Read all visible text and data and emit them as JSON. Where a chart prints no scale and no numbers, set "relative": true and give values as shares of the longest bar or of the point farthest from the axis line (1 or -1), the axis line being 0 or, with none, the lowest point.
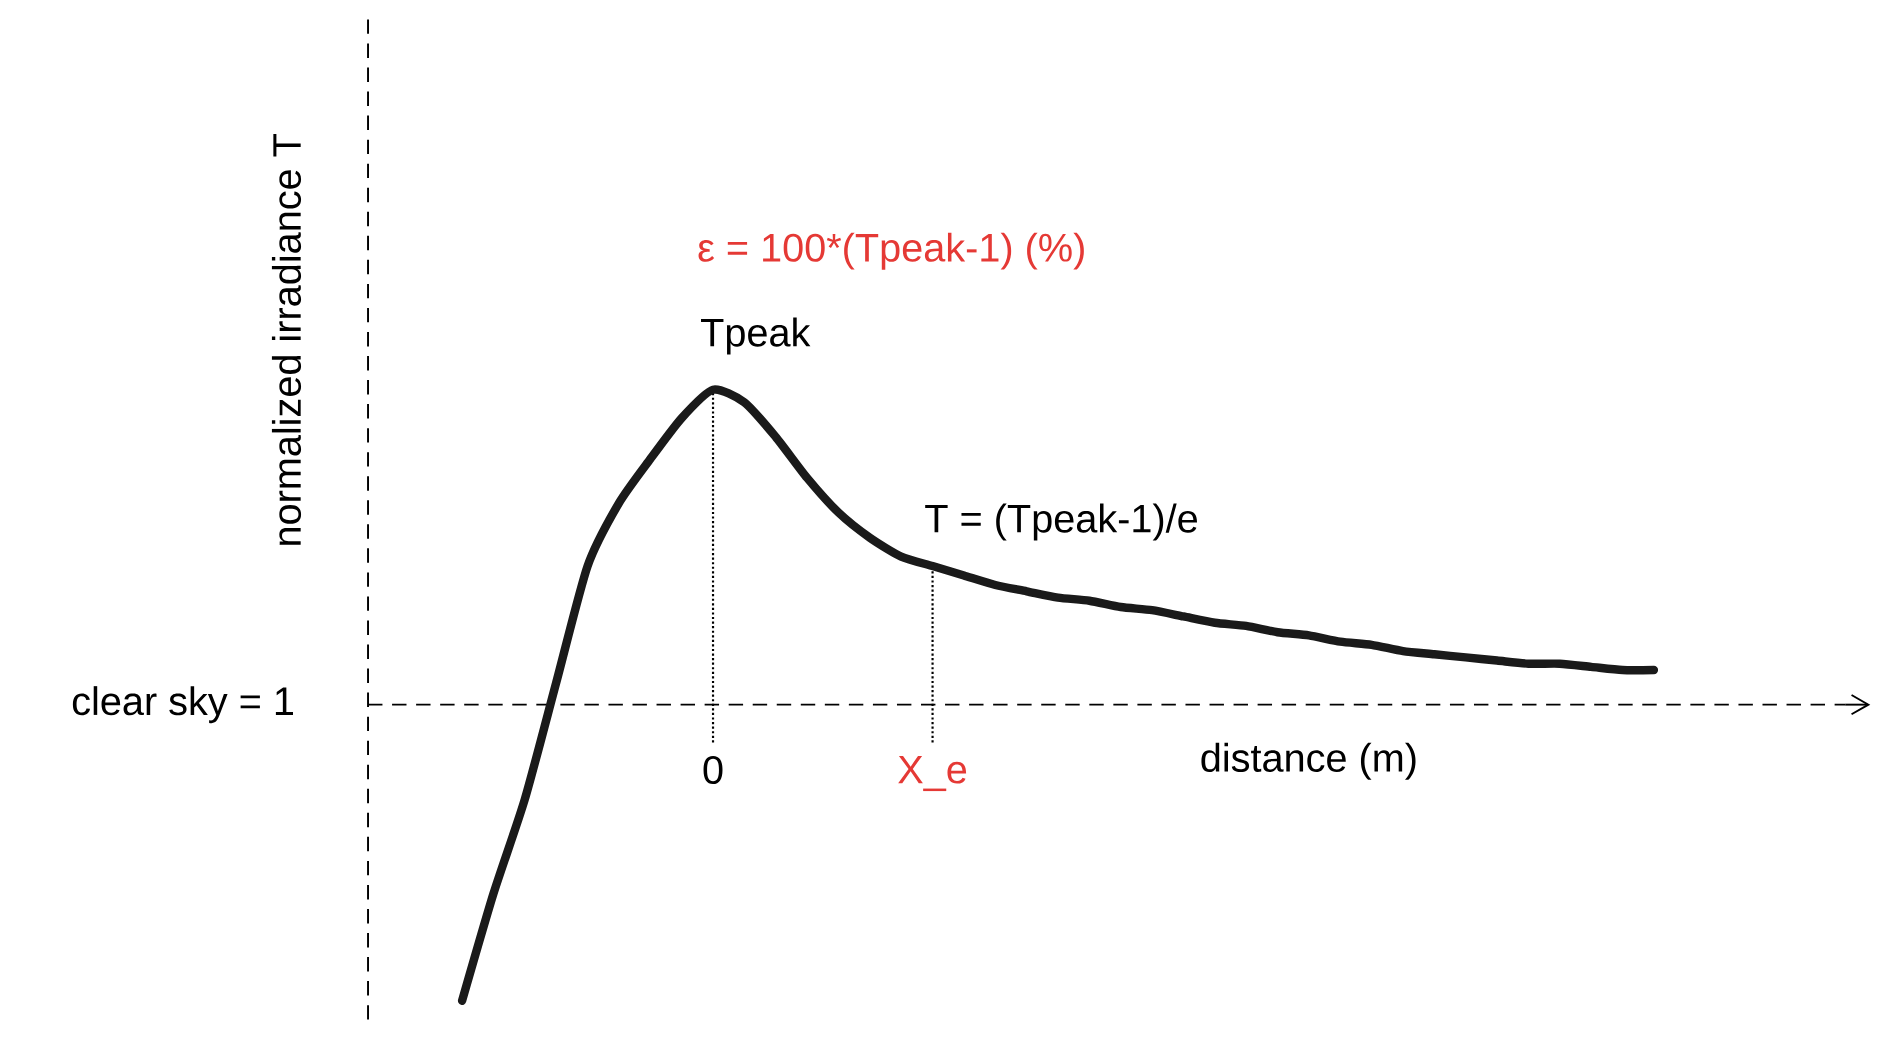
{
  "chart_data": {
    "type": "line",
    "relative": true,
    "xlabel": "distance (m)",
    "ylabel": "normalized irradiance T",
    "categories": [
      null,
      null,
      null,
      null,
      null,
      null,
      null,
      null,
      "0",
      null,
      null,
      null,
      null,
      null,
      null,
      "X_e",
      null,
      null,
      null,
      null,
      null,
      null,
      null,
      null,
      null,
      null,
      null,
      null,
      null,
      null,
      null,
      null,
      null,
      null,
      null,
      null,
      null,
      null,
      null
    ],
    "series": [
      {
        "color": "#1a1a1a",
        "values": [
          -0.94,
          -0.6,
          -0.3,
          0.07,
          0.44,
          0.64,
          0.78,
          0.91,
          1,
          0.96,
          0.85,
          0.72,
          0.61,
          0.53,
          0.47,
          0.44,
          0.41,
          0.38,
          0.36,
          0.34,
          0.33,
          0.31,
          0.3,
          0.28,
          0.26,
          0.25,
          0.23,
          0.22,
          0.2,
          0.19,
          0.17,
          0.16,
          0.15,
          0.14,
          0.13,
          0.13,
          0.12,
          0.11,
          0.11
        ]
      }
    ],
    "ref_lines": [
      {
        "axis": "y",
        "value": 0,
        "line_style": "dashed"
      },
      {
        "axis": "x",
        "value": "0",
        "line_style": "dotted"
      },
      {
        "axis": "x",
        "value": "X_e",
        "line_style": "dotted"
      }
    ],
    "annotations": [
      "ε = 100*(Tpeak-1) (%)",
      "clear sky = 1",
      {
        "text": "Tpeak",
        "x": "0",
        "y": 1
      },
      {
        "text": "T = (Tpeak-1)/e",
        "x": "X_e",
        "y": 0.44
      }
    ],
    "line_style": "solid"
  }
}
